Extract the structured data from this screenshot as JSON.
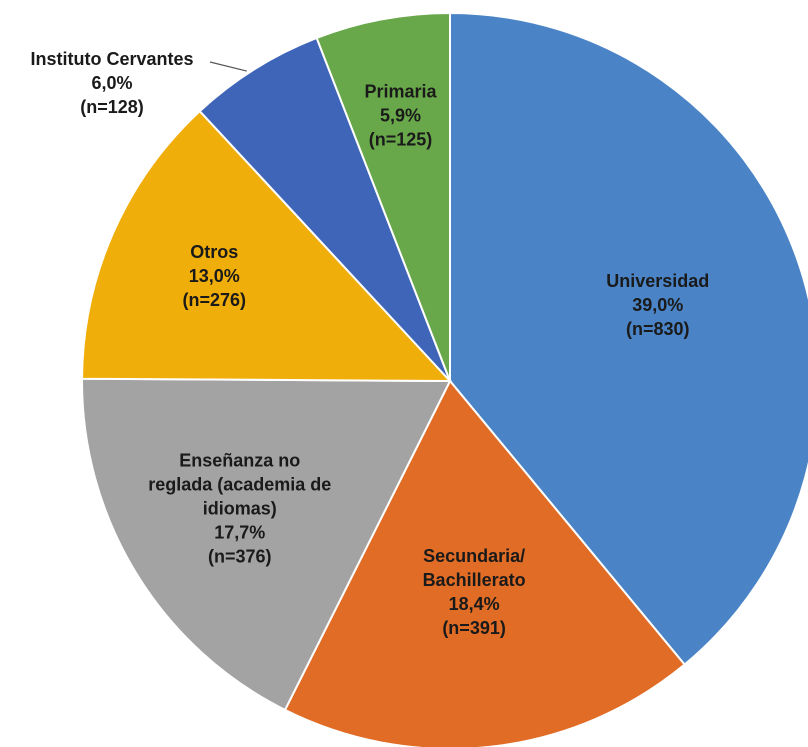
{
  "chart_data": {
    "type": "pie",
    "categories": [
      [
        "Universidad"
      ],
      [
        "Secundaria/",
        "Bachillerato"
      ],
      [
        "Enseñanza no",
        "reglada (academia de",
        "idiomas)"
      ],
      [
        "Otros"
      ],
      [
        "Instituto Cervantes"
      ],
      [
        "Primaria"
      ]
    ],
    "values": [
      39.0,
      18.4,
      17.7,
      13.0,
      6.0,
      5.9
    ],
    "value_labels": [
      "39,0%",
      "18,4%",
      "17,7%",
      "13,0%",
      "6,0%",
      "5,9%"
    ],
    "counts": [
      830,
      391,
      376,
      276,
      128,
      125
    ],
    "count_labels": [
      "(n=830)",
      "(n=391)",
      "(n=376)",
      "(n=276)",
      "(n=128)",
      "(n=125)"
    ],
    "colors": [
      "#4a84c6",
      "#e06c26",
      "#a3a3a3",
      "#f0ae0a",
      "#3f65b9",
      "#69a84a"
    ]
  }
}
